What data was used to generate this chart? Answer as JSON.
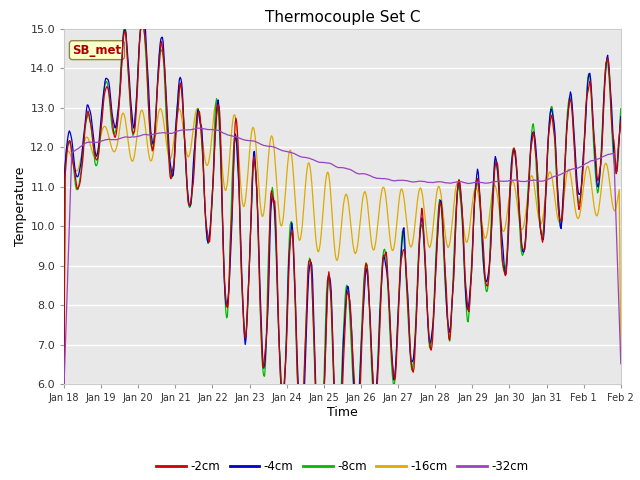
{
  "title": "Thermocouple Set C",
  "xlabel": "Time",
  "ylabel": "Temperature",
  "ylim": [
    6.0,
    15.0
  ],
  "yticks": [
    6.0,
    7.0,
    8.0,
    9.0,
    10.0,
    11.0,
    12.0,
    13.0,
    14.0,
    15.0
  ],
  "colors": {
    "-2cm": "#cc0000",
    "-4cm": "#0000cc",
    "-8cm": "#00bb00",
    "-16cm": "#ddaa00",
    "-32cm": "#9944bb"
  },
  "legend_labels": [
    "-2cm",
    "-4cm",
    "-8cm",
    "-16cm",
    "-32cm"
  ],
  "annotation_text": "SB_met",
  "annotation_color": "#aa0000",
  "annotation_bg": "#ffffcc",
  "annotation_edge": "#888844",
  "fig_bg": "#ffffff",
  "plot_bg": "#e8e8e8",
  "grid_color": "#ffffff",
  "x_tick_labels": [
    "Jan 18",
    "Jan 19",
    "Jan 20",
    "Jan 21",
    "Jan 22",
    "Jan 23",
    "Jan 24",
    "Jan 25",
    "Jan 26",
    "Jan 27",
    "Jan 28",
    "Jan 29",
    "Jan 30",
    "Jan 31",
    "Feb 1",
    "Feb 2"
  ],
  "n_points": 720
}
